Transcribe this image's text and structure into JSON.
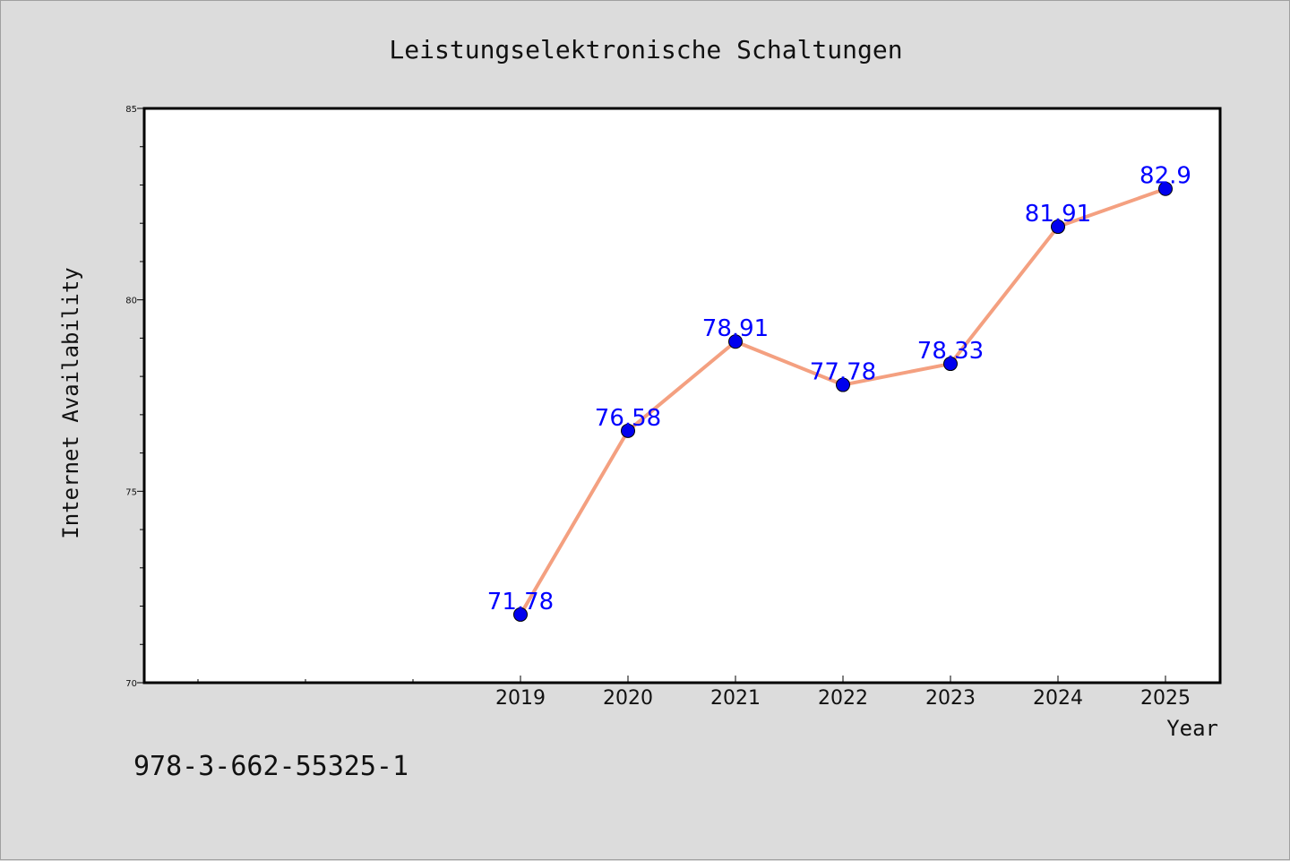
{
  "chart_data": {
    "type": "line",
    "title": "Leistungselektronische Schaltungen",
    "xlabel": "Year",
    "ylabel": "Internet Availability",
    "categories": [
      "2019",
      "2020",
      "2021",
      "2022",
      "2023",
      "2024",
      "2025"
    ],
    "series": [
      {
        "values": [
          71.78,
          76.58,
          78.91,
          77.78,
          78.33,
          81.91,
          82.9
        ],
        "data_labels": [
          "71.78",
          "76.58",
          "78.91",
          "77.78",
          "78.33",
          "81.91",
          "82.9"
        ],
        "line_color": "#f4a080",
        "marker_color": "#0000ee"
      }
    ],
    "ylim": [
      70,
      85
    ],
    "yticks": [
      70,
      75,
      80,
      85
    ],
    "grid": false,
    "label_color": "#0000ff"
  },
  "footer": {
    "isbn": "978-3-662-55325-1"
  }
}
